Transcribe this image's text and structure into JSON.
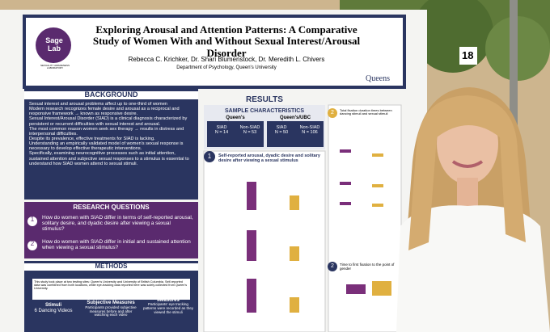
{
  "board_number": "18",
  "header": {
    "logo": "Sage Lab",
    "logo_subtitle": "SEXUALITY AWARENESS LABORATORY",
    "title": "Exploring Arousal and Attention Patterns: A Comparative Study of Women With and Without Sexual Interest/Arousal Disorder",
    "authors": "Rebecca C. Krichker, Dr. Shari Blumenstock, Dr. Meredith L. Chivers",
    "affiliation": "Department of Psychology, Queen's University",
    "university": "Queens"
  },
  "background": {
    "heading": "BACKGROUND",
    "bullets": [
      "Sexual interest and arousal problems affect up to one-third of women",
      "Modern research recognizes female desire and arousal as a reciprocal and responsive framework → known as responsive desire.",
      "Sexual Interest/Arousal Disorder (SIAD) is a clinical diagnosis characterized by persistent or recurrent difficulties with sexual interest and arousal.",
      "The most common reason women seek sex therapy → results in distress and interpersonal difficulties.",
      "Despite its prevalence, effective treatments for SIAD is lacking.",
      "Understanding an empirically validated model of women's sexual response is necessary to develop effective therapeutic interventions.",
      "Specifically, examining neurocognitive processes such as initial attention, sustained attention and subjective sexual responses to a stimulus is essential to understand how SIAD women attend to sexual stimuli."
    ]
  },
  "research_questions": {
    "heading": "RESEARCH QUESTIONS",
    "questions": [
      {
        "number": "1",
        "text": "How do women with SIAD differ in terms of self-reported arousal, solitary desire, and dyadic desire after viewing a sexual stimulus?"
      },
      {
        "number": "2",
        "text": "How do women with SIAD differ in initial and sustained attention when viewing a sexual stimulus?"
      }
    ]
  },
  "methods": {
    "heading": "METHODS",
    "location_heading": "Data Collection Location",
    "location_text": "This study took place at two testing sites: Queen's University and University of British Columbia. Self-reported data was combined from both locations, while eye-tracking data reported here was solely collected from Queen's University.",
    "boxes": [
      {
        "title": "Stimuli",
        "text": "6 Dancing Videos"
      },
      {
        "title": "Subjective Measures",
        "text": "Participants provided subjective measures before and after watching each video"
      },
      {
        "title": "Eye-Tracking Measures",
        "text": "Participants' eye tracking patterns were recorded as they viewed the stimuli"
      }
    ]
  },
  "results": {
    "heading": "RESULTS",
    "sample": {
      "heading": "SAMPLE CHARACTERISTICS",
      "groups": [
        {
          "name": "Queen's",
          "cols": [
            {
              "label": "SIAD",
              "n": "N = 14"
            },
            {
              "label": "Non-SIAD",
              "n": "N = 53"
            }
          ]
        },
        {
          "name": "Queen's/UBC",
          "cols": [
            {
              "label": "SIAD",
              "n": "N = 50"
            },
            {
              "label": "Non-SIAD",
              "n": "N = 106"
            }
          ]
        }
      ]
    },
    "panels": [
      {
        "number": "1",
        "title": "Self-reported arousal, dyadic desire and solitary desire after viewing a sexual stimulus"
      },
      {
        "number": "2",
        "title": "Total fixation duration times between dancing stimuli and sexual stimuli"
      },
      {
        "number": "2",
        "title": "Time to first fixation to the point of gender"
      }
    ]
  }
}
